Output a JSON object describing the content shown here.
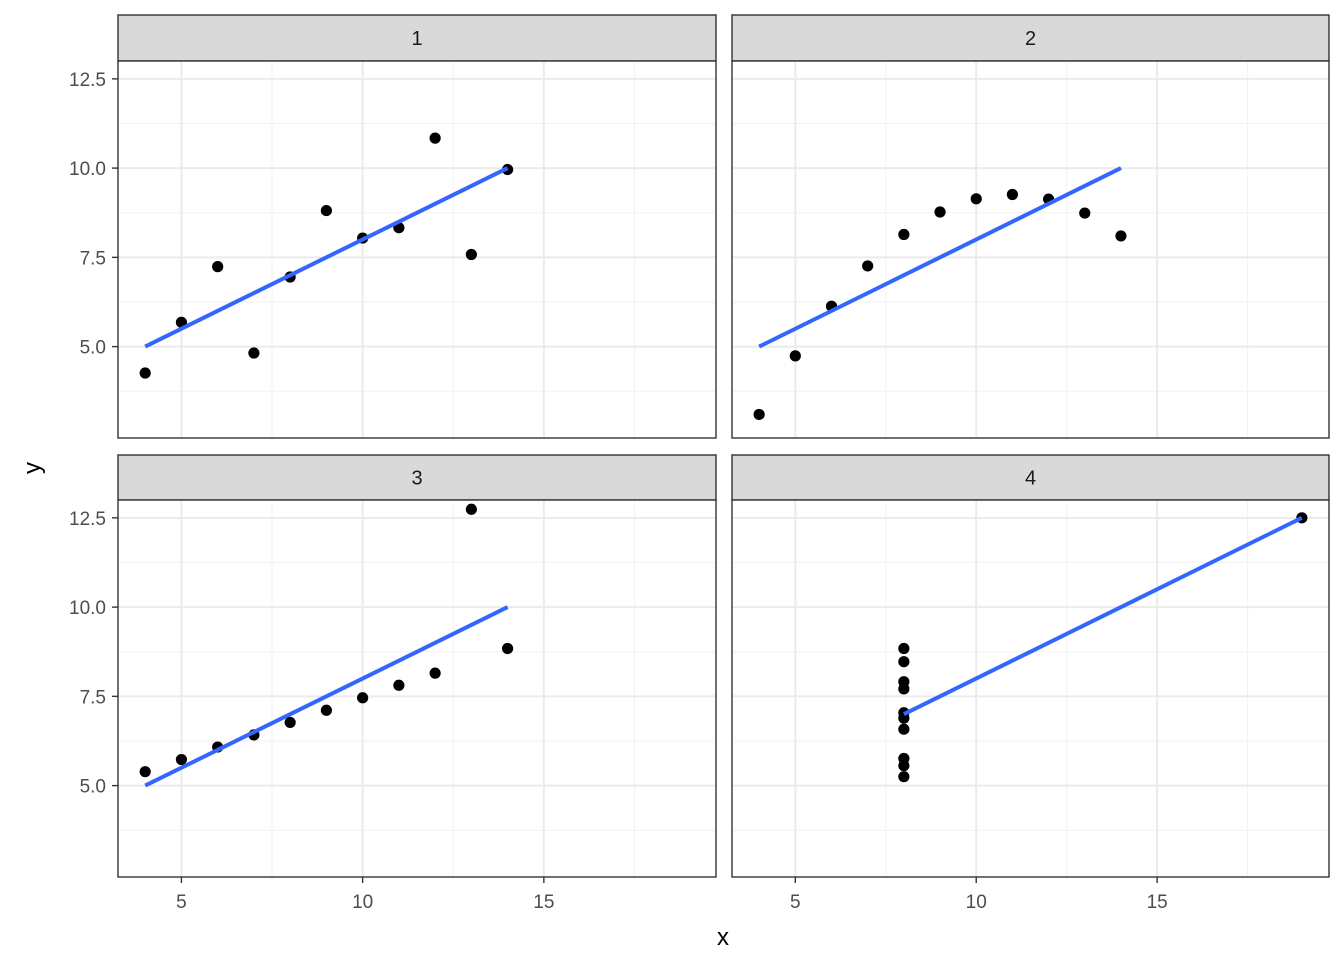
{
  "chart_data": {
    "type": "scatter",
    "facet_labels": [
      "1",
      "2",
      "3",
      "4"
    ],
    "xlabel": "x",
    "ylabel": "y",
    "xlim": [
      3.25,
      19.75
    ],
    "ylim": [
      2.44,
      13.0
    ],
    "x_ticks": [
      5,
      10,
      15
    ],
    "x_tick_labels": [
      "5",
      "10",
      "15"
    ],
    "y_ticks": [
      5,
      7.5,
      10,
      12.5
    ],
    "y_tick_labels": [
      "5.0",
      "7.5",
      "10.0",
      "12.5"
    ],
    "grid": true,
    "point_color": "#000000",
    "line_color": "#3366ff",
    "panels": [
      {
        "label": "1",
        "x": [
          10,
          8,
          13,
          9,
          11,
          14,
          6,
          4,
          12,
          7,
          5
        ],
        "y": [
          8.04,
          6.95,
          7.58,
          8.81,
          8.33,
          9.96,
          7.24,
          4.26,
          10.84,
          4.82,
          5.68
        ],
        "fit": {
          "x": [
            4,
            14
          ],
          "y": [
            5.0,
            10.0
          ]
        }
      },
      {
        "label": "2",
        "x": [
          10,
          8,
          13,
          9,
          11,
          14,
          6,
          4,
          12,
          7,
          5
        ],
        "y": [
          9.14,
          8.14,
          8.74,
          8.77,
          9.26,
          8.1,
          6.13,
          3.1,
          9.13,
          7.26,
          4.74
        ],
        "fit": {
          "x": [
            4,
            14
          ],
          "y": [
            5.0,
            10.0
          ]
        }
      },
      {
        "label": "3",
        "x": [
          10,
          8,
          13,
          9,
          11,
          14,
          6,
          4,
          12,
          7,
          5
        ],
        "y": [
          7.46,
          6.77,
          12.74,
          7.11,
          7.81,
          8.84,
          6.08,
          5.39,
          8.15,
          6.42,
          5.73
        ],
        "fit": {
          "x": [
            4,
            14
          ],
          "y": [
            5.0,
            10.0
          ]
        }
      },
      {
        "label": "4",
        "x": [
          8,
          8,
          8,
          8,
          8,
          8,
          8,
          19,
          8,
          8,
          8
        ],
        "y": [
          6.58,
          5.76,
          7.71,
          8.84,
          8.47,
          7.04,
          5.25,
          12.5,
          5.56,
          7.91,
          6.89
        ],
        "fit": {
          "x": [
            8,
            19
          ],
          "y": [
            7.0,
            12.5
          ]
        }
      }
    ]
  }
}
